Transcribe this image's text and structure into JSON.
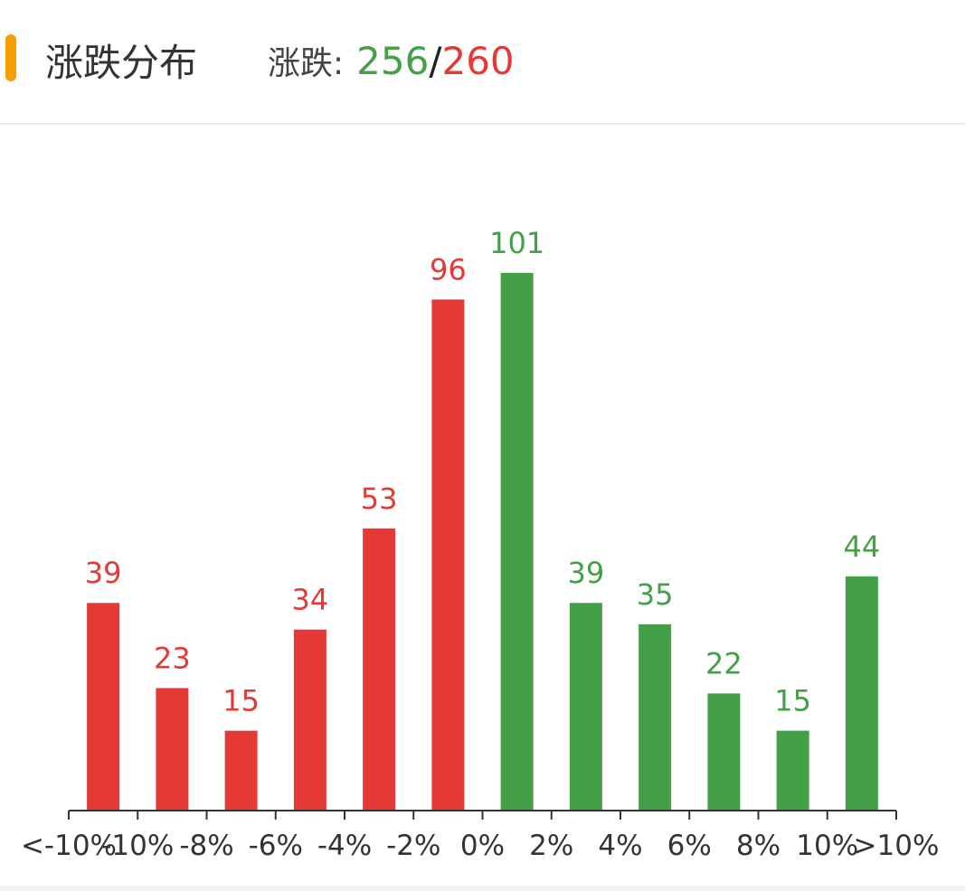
{
  "header": {
    "title": "涨跌分布",
    "label": "涨跌:",
    "up": 256,
    "separator": "/",
    "down": 260
  },
  "chart_data": {
    "type": "bar",
    "edge_labels": [
      "<-10%",
      "-10%",
      "-8%",
      "-6%",
      "-4%",
      "-2%",
      "0%",
      "2%",
      "4%",
      "6%",
      "8%",
      "10%",
      ">10%"
    ],
    "values": [
      39,
      23,
      15,
      34,
      53,
      96,
      101,
      39,
      35,
      22,
      15,
      44
    ],
    "colors": [
      "#e53935",
      "#e53935",
      "#e53935",
      "#e53935",
      "#e53935",
      "#e53935",
      "#43a047",
      "#43a047",
      "#43a047",
      "#43a047",
      "#43a047",
      "#43a047"
    ],
    "ylim": [
      0,
      101
    ]
  }
}
